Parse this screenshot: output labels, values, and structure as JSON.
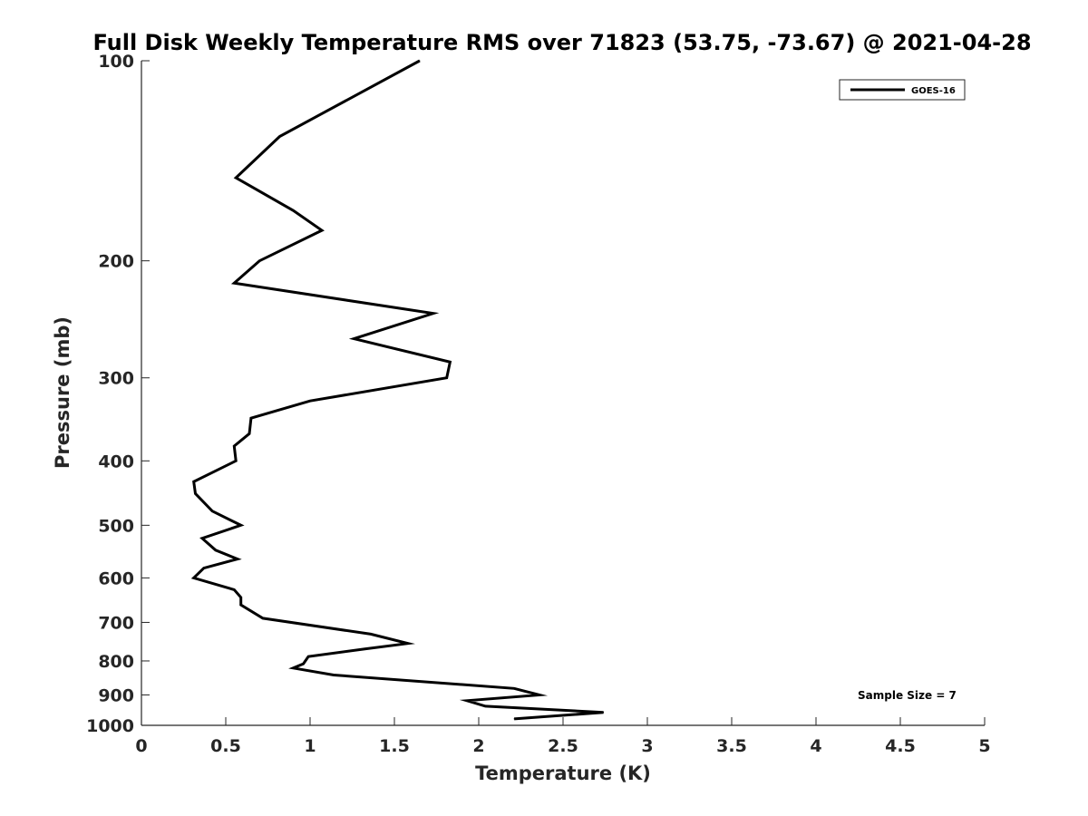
{
  "chart_data": {
    "type": "line",
    "title": "Full Disk Weekly Temperature RMS over 71823 (53.75, -73.67) @ 2021-04-28",
    "xlabel": "Temperature (K)",
    "ylabel": "Pressure (mb)",
    "xlim": [
      0,
      5
    ],
    "ylim": [
      100,
      1000
    ],
    "y_scale": "log",
    "y_reversed": true,
    "grid": false,
    "legend_position": "top-right",
    "x_ticks": [
      "0",
      "0.5",
      "1",
      "1.5",
      "2",
      "2.5",
      "3",
      "3.5",
      "4",
      "4.5",
      "5"
    ],
    "y_ticks": [
      "100",
      "200",
      "300",
      "400",
      "500",
      "600",
      "700",
      "800",
      "900",
      "1000"
    ],
    "series": [
      {
        "name": "GOES-16",
        "color": "#000000",
        "points": [
          [
            1.65,
            100
          ],
          [
            0.82,
            130
          ],
          [
            0.56,
            150
          ],
          [
            0.9,
            168
          ],
          [
            1.07,
            180
          ],
          [
            0.7,
            200
          ],
          [
            0.55,
            216
          ],
          [
            1.73,
            240
          ],
          [
            1.26,
            262
          ],
          [
            1.83,
            284
          ],
          [
            1.81,
            300
          ],
          [
            1.0,
            325
          ],
          [
            0.65,
            345
          ],
          [
            0.64,
            364
          ],
          [
            0.55,
            380
          ],
          [
            0.56,
            400
          ],
          [
            0.31,
            430
          ],
          [
            0.32,
            448
          ],
          [
            0.42,
            476
          ],
          [
            0.59,
            500
          ],
          [
            0.36,
            523
          ],
          [
            0.44,
            545
          ],
          [
            0.57,
            562
          ],
          [
            0.37,
            580
          ],
          [
            0.31,
            600
          ],
          [
            0.55,
            625
          ],
          [
            0.59,
            642
          ],
          [
            0.59,
            659
          ],
          [
            0.72,
            690
          ],
          [
            1.36,
            729
          ],
          [
            1.58,
            753
          ],
          [
            1.33,
            767
          ],
          [
            0.99,
            788
          ],
          [
            0.96,
            808
          ],
          [
            0.9,
            820
          ],
          [
            1.14,
            840
          ],
          [
            2.21,
            880
          ],
          [
            2.36,
            900
          ],
          [
            1.93,
            918
          ],
          [
            2.04,
            936
          ],
          [
            2.74,
            956
          ],
          [
            2.21,
            978
          ]
        ]
      }
    ],
    "annotations": [
      "Sample Size = 7"
    ]
  }
}
